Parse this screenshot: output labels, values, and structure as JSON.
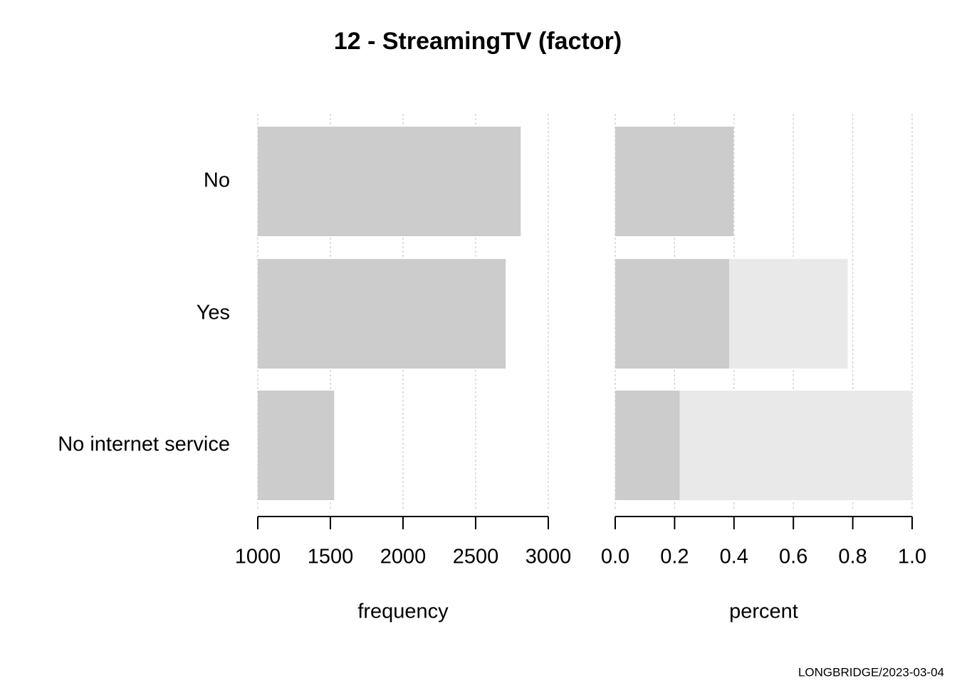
{
  "title": "12 - StreamingTV (factor)",
  "caption": "LONGBRIDGE/2023-03-04",
  "chart_data": [
    {
      "type": "bar",
      "orientation": "horizontal",
      "categories": [
        "No",
        "Yes",
        "No internet service"
      ],
      "values": [
        2810,
        2707,
        1526
      ],
      "color": "#cccccc",
      "xlim": [
        1000,
        3000
      ],
      "xticks": [
        1000,
        1500,
        2000,
        2500,
        3000
      ],
      "xlabel": "frequency",
      "grid": true
    },
    {
      "type": "percent",
      "values": [
        0.399,
        0.384,
        0.217
      ],
      "color": "#cccccc",
      "cumulative_color": "#e9e9e9",
      "xlim": [
        0,
        1
      ],
      "xticks": [
        {
          "value": 0,
          "label": "0.0"
        },
        0.2,
        0.4,
        0.6,
        0.8,
        {
          "value": 1,
          "label": "1.0"
        }
      ],
      "xlabel": "percent",
      "grid": true
    }
  ]
}
